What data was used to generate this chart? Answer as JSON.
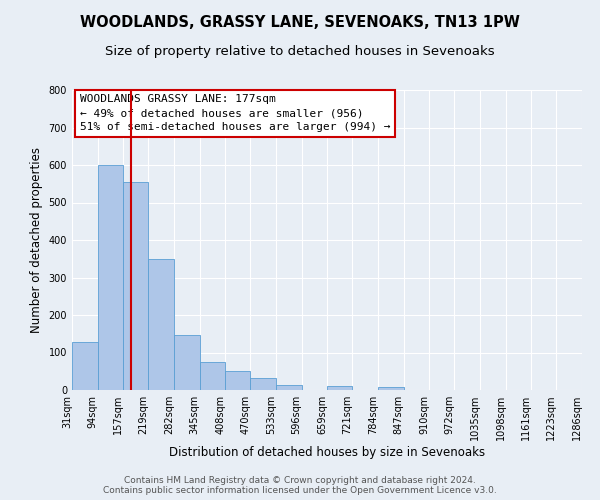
{
  "title": "WOODLANDS, GRASSY LANE, SEVENOAKS, TN13 1PW",
  "subtitle": "Size of property relative to detached houses in Sevenoaks",
  "xlabel": "Distribution of detached houses by size in Sevenoaks",
  "ylabel": "Number of detached properties",
  "bin_edges": [
    31,
    94,
    157,
    219,
    282,
    345,
    408,
    470,
    533,
    596,
    659,
    721,
    784,
    847,
    910,
    972,
    1035,
    1098,
    1161,
    1223,
    1286
  ],
  "bin_labels": [
    "31sqm",
    "94sqm",
    "157sqm",
    "219sqm",
    "282sqm",
    "345sqm",
    "408sqm",
    "470sqm",
    "533sqm",
    "596sqm",
    "659sqm",
    "721sqm",
    "784sqm",
    "847sqm",
    "910sqm",
    "972sqm",
    "1035sqm",
    "1098sqm",
    "1161sqm",
    "1223sqm",
    "1286sqm"
  ],
  "bar_heights": [
    128,
    600,
    555,
    350,
    148,
    75,
    52,
    33,
    14,
    0,
    10,
    0,
    8,
    0,
    0,
    0,
    0,
    0,
    0,
    0
  ],
  "bar_color": "#aec6e8",
  "bar_edge_color": "#5a9fd4",
  "vline_x": 177,
  "vline_color": "#cc0000",
  "annotation_line1": "WOODLANDS GRASSY LANE: 177sqm",
  "annotation_line2": "← 49% of detached houses are smaller (956)",
  "annotation_line3": "51% of semi-detached houses are larger (994) →",
  "ylim": [
    0,
    800
  ],
  "yticks": [
    0,
    100,
    200,
    300,
    400,
    500,
    600,
    700,
    800
  ],
  "background_color": "#e8eef5",
  "plot_background_color": "#e8eef5",
  "footer_line1": "Contains HM Land Registry data © Crown copyright and database right 2024.",
  "footer_line2": "Contains public sector information licensed under the Open Government Licence v3.0.",
  "title_fontsize": 10.5,
  "subtitle_fontsize": 9.5,
  "xlabel_fontsize": 8.5,
  "ylabel_fontsize": 8.5,
  "tick_fontsize": 7,
  "annotation_fontsize": 8,
  "footer_fontsize": 6.5
}
